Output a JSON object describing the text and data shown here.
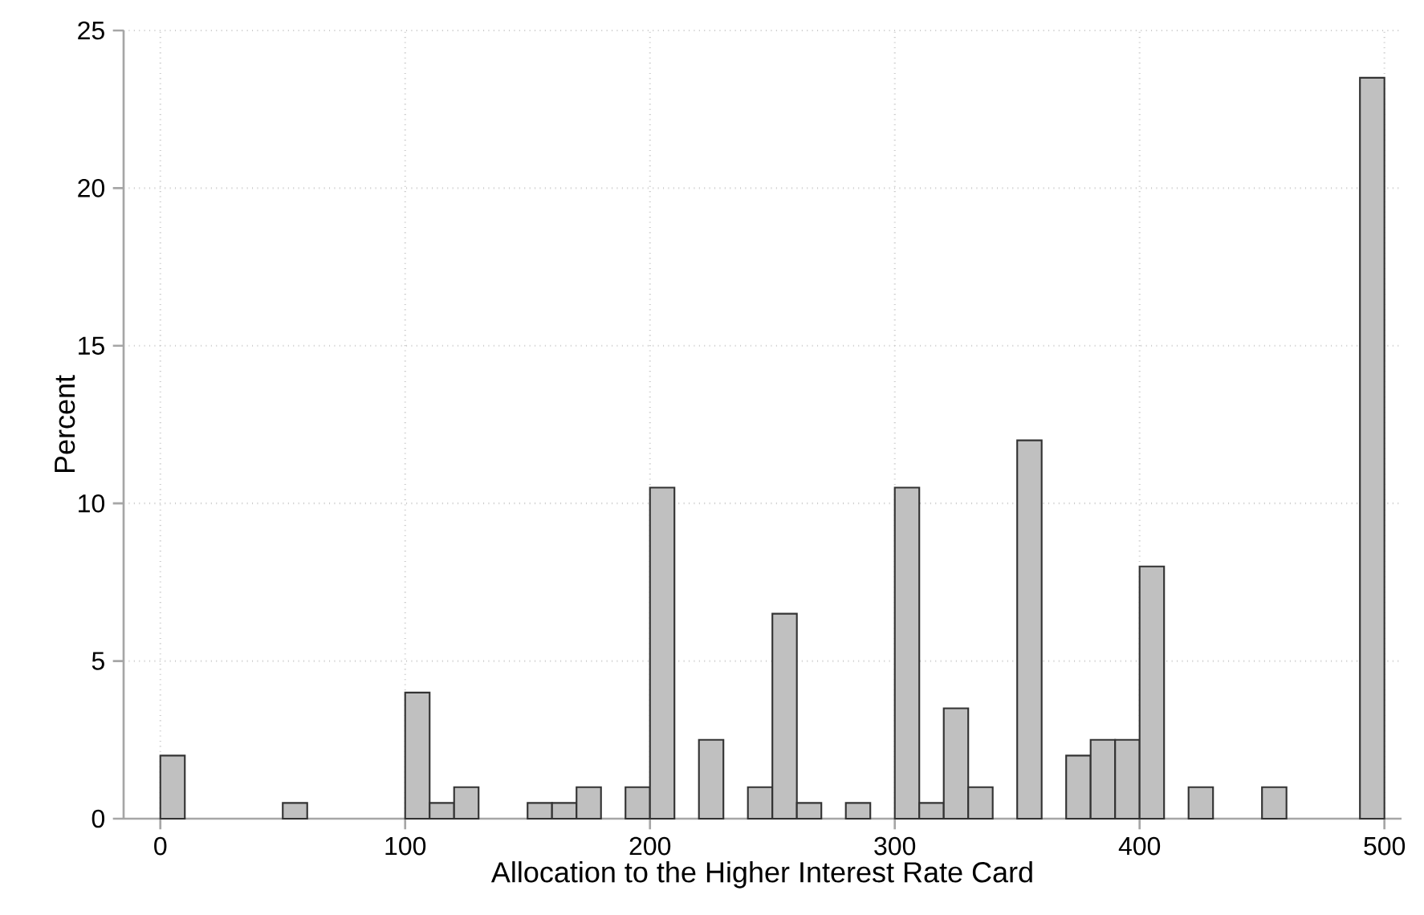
{
  "chart_data": {
    "type": "histogram",
    "xlabel": "Allocation to the Higher Interest Rate Card",
    "ylabel": "Percent",
    "bins": [
      0,
      10,
      20,
      30,
      40,
      50,
      60,
      70,
      80,
      90,
      100,
      110,
      120,
      130,
      140,
      150,
      160,
      170,
      180,
      190,
      200,
      210,
      220,
      230,
      240,
      250,
      260,
      270,
      280,
      290,
      300,
      310,
      320,
      330,
      340,
      350,
      360,
      370,
      380,
      390,
      400,
      410,
      420,
      430,
      440,
      450,
      460,
      470,
      480,
      490,
      500
    ],
    "values": [
      2,
      0,
      0,
      0,
      0,
      0.5,
      0,
      0,
      0,
      0,
      4,
      0.5,
      1,
      0,
      0,
      0.5,
      0.5,
      1,
      0,
      1,
      10.5,
      0,
      2.5,
      0,
      1,
      6.5,
      0.5,
      0,
      0.5,
      0,
      10.5,
      0.5,
      3.5,
      1,
      0,
      12,
      0,
      2,
      2.5,
      2.5,
      8,
      0,
      1,
      0,
      0,
      1,
      0,
      0,
      0,
      23.5
    ],
    "color": "#c0c0c0",
    "xlim": [
      -15,
      507
    ],
    "ylim": [
      0,
      25
    ],
    "xticks": [
      0,
      100,
      200,
      300,
      400,
      500
    ],
    "yticks": [
      0,
      5,
      10,
      15,
      20,
      25
    ],
    "grid": true
  }
}
